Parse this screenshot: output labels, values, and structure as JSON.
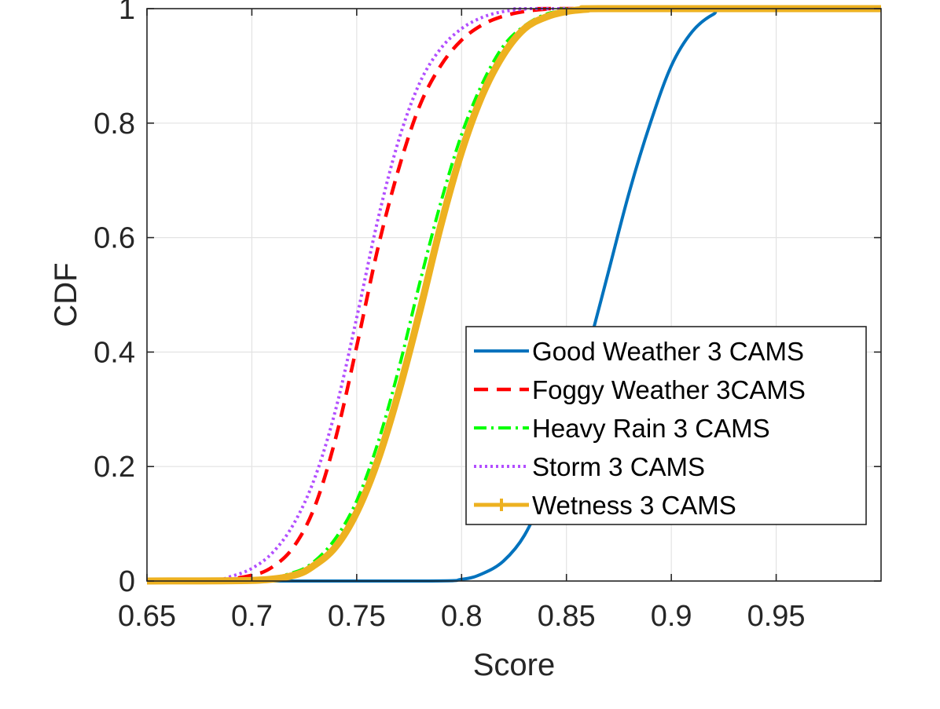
{
  "chart_data": {
    "type": "line",
    "title": "",
    "xlabel": "Score",
    "ylabel": "CDF",
    "xlim": [
      0.65,
      1.0
    ],
    "ylim": [
      0,
      1
    ],
    "grid": true,
    "legend_position": "lower-right",
    "x_ticks": [
      0.65,
      0.7,
      0.75,
      0.8,
      0.85,
      0.9,
      0.95
    ],
    "x_tick_labels": [
      "0.65",
      "0.7",
      "0.75",
      "0.8",
      "0.85",
      "0.9",
      "0.95"
    ],
    "y_ticks": [
      0,
      0.2,
      0.4,
      0.6,
      0.8,
      1
    ],
    "y_tick_labels": [
      "0",
      "0.2",
      "0.4",
      "0.6",
      "0.8",
      "1"
    ],
    "series": [
      {
        "name": "Good Weather 3 CAMS",
        "style": "solid",
        "color": "#0072BD",
        "x": [
          0.65,
          0.78,
          0.8,
          0.81,
          0.82,
          0.83,
          0.84,
          0.85,
          0.86,
          0.87,
          0.88,
          0.89,
          0.9,
          0.91,
          0.92,
          0.93,
          1.0
        ],
        "y": [
          0,
          0,
          0.003,
          0.013,
          0.035,
          0.08,
          0.16,
          0.27,
          0.4,
          0.54,
          0.68,
          0.8,
          0.9,
          0.96,
          0.99,
          1.0,
          1.0
        ]
      },
      {
        "name": "Foggy Weather  3CAMS",
        "style": "dashed",
        "color": "#FF0000",
        "x": [
          0.65,
          0.68,
          0.7,
          0.71,
          0.72,
          0.73,
          0.74,
          0.75,
          0.76,
          0.77,
          0.78,
          0.79,
          0.8,
          0.81,
          0.82,
          0.83,
          0.84,
          0.85,
          1.0
        ],
        "y": [
          0,
          0,
          0.01,
          0.025,
          0.06,
          0.13,
          0.25,
          0.41,
          0.58,
          0.72,
          0.83,
          0.9,
          0.945,
          0.972,
          0.987,
          0.995,
          0.999,
          1.0,
          1.0
        ]
      },
      {
        "name": "Heavy Rain 3 CAMS",
        "style": "dashdot",
        "color": "#00FF00",
        "x": [
          0.65,
          0.7,
          0.72,
          0.73,
          0.74,
          0.75,
          0.76,
          0.77,
          0.78,
          0.79,
          0.8,
          0.81,
          0.82,
          0.83,
          0.84,
          0.85,
          0.86,
          1.0
        ],
        "y": [
          0,
          0.002,
          0.015,
          0.035,
          0.075,
          0.14,
          0.24,
          0.37,
          0.52,
          0.66,
          0.78,
          0.87,
          0.935,
          0.97,
          0.99,
          0.997,
          1.0,
          1.0
        ]
      },
      {
        "name": "Storm 3 CAMS",
        "style": "dotted",
        "color": "#B24EFF",
        "x": [
          0.65,
          0.68,
          0.69,
          0.7,
          0.71,
          0.72,
          0.73,
          0.74,
          0.75,
          0.76,
          0.77,
          0.78,
          0.79,
          0.8,
          0.81,
          0.82,
          0.83,
          0.84,
          1.0
        ],
        "y": [
          0,
          0,
          0.008,
          0.022,
          0.05,
          0.1,
          0.18,
          0.3,
          0.46,
          0.63,
          0.77,
          0.87,
          0.93,
          0.965,
          0.985,
          0.995,
          0.999,
          1.0,
          1.0
        ]
      },
      {
        "name": "Wetness 3 CAMS",
        "style": "plus-marker",
        "color": "#EDB120",
        "x": [
          0.65,
          0.7,
          0.72,
          0.73,
          0.74,
          0.75,
          0.76,
          0.77,
          0.78,
          0.79,
          0.8,
          0.81,
          0.82,
          0.83,
          0.84,
          0.85,
          0.86,
          0.87,
          1.0
        ],
        "y": [
          0,
          0.001,
          0.01,
          0.028,
          0.06,
          0.12,
          0.21,
          0.33,
          0.47,
          0.62,
          0.75,
          0.85,
          0.92,
          0.965,
          0.985,
          0.995,
          0.999,
          1.0,
          1.0
        ]
      }
    ]
  }
}
